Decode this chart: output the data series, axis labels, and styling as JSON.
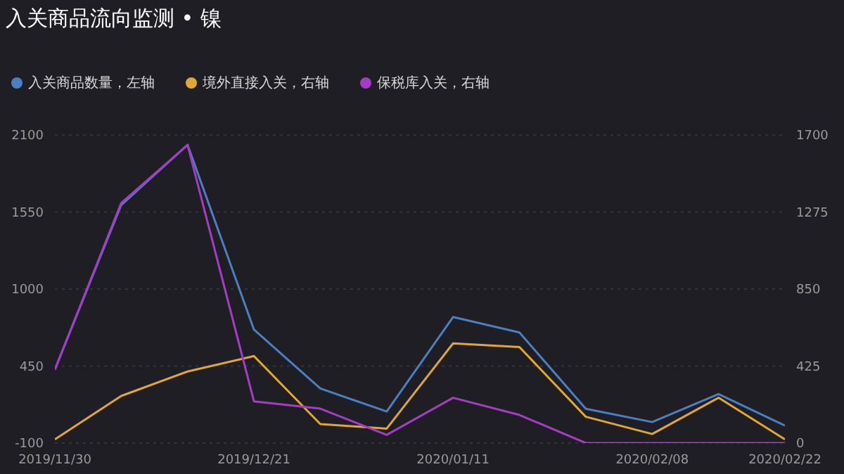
{
  "chart_data": {
    "type": "line",
    "title": "入关商品流向监测 • 镍",
    "categories": [
      "2019/11/30",
      null,
      null,
      "2019/12/21",
      null,
      null,
      "2020/01/11",
      null,
      null,
      "2020/02/08",
      null,
      "2020/02/22"
    ],
    "series": [
      {
        "name": "入关商品数量，左轴",
        "color": "#4a7fc1",
        "values": [
          425,
          1600,
          2030,
          710,
          290,
          125,
          800,
          690,
          145,
          50,
          250,
          25
        ]
      },
      {
        "name": "境外直接入关，右轴",
        "color": "#e0a832",
        "axis": "y2",
        "values": [
          20,
          260,
          395,
          480,
          105,
          80,
          550,
          530,
          145,
          50,
          250,
          20
        ]
      },
      {
        "name": "保税库入关，右轴",
        "color": "#a53cc4",
        "axis": "y2",
        "values": [
          405,
          1325,
          1645,
          230,
          190,
          45,
          250,
          155,
          0,
          0,
          0,
          0
        ]
      }
    ],
    "ylim": [
      -100,
      2100
    ],
    "yticks": [
      -100,
      450,
      1000,
      1550,
      2100
    ],
    "y2lim": [
      0,
      1700
    ],
    "y2ticks": [
      0,
      425,
      850,
      1275,
      1700
    ],
    "grid": "y",
    "legend": "top left",
    "marker": "none",
    "line_style": "solid"
  }
}
